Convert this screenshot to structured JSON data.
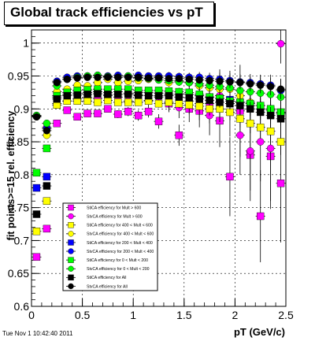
{
  "title": "Global track efficiencies vs pT",
  "footer": "Tue Nov  1 10:42:40 2011",
  "chart_data": {
    "type": "scatter",
    "title": "Global track efficiencies vs pT",
    "xlabel": "pT (GeV/c)",
    "ylabel": "fit points>=15 rel. efficiency",
    "xlim": [
      0,
      2.5
    ],
    "ylim": [
      0.6,
      1.02
    ],
    "x_ticks": [
      0,
      0.5,
      1,
      1.5,
      2,
      2.5
    ],
    "x_tick_labels": [
      "0",
      "0.5",
      "1",
      "1.5",
      "2",
      "2.5"
    ],
    "y_ticks": [
      0.6,
      0.65,
      0.7,
      0.75,
      0.8,
      0.85,
      0.9,
      0.95,
      1.0
    ],
    "y_tick_labels": [
      "0.6",
      "0.65",
      "0.7",
      "0.75",
      "0.8",
      "0.85",
      "0.9",
      "0.95",
      "1"
    ],
    "grid": true,
    "legend_position": "bottom-left",
    "x": [
      0.05,
      0.15,
      0.25,
      0.35,
      0.45,
      0.55,
      0.65,
      0.75,
      0.85,
      0.95,
      1.05,
      1.15,
      1.25,
      1.35,
      1.45,
      1.55,
      1.65,
      1.75,
      1.85,
      1.95,
      2.05,
      2.15,
      2.25,
      2.35,
      2.45
    ],
    "series": [
      {
        "name": "StiCA efficiency  for Mult > 600",
        "color": "#ff00ff",
        "marker": "square",
        "values": [
          0.675,
          0.718,
          0.878,
          0.898,
          0.888,
          0.893,
          0.893,
          0.9,
          0.892,
          0.896,
          0.89,
          0.896,
          0.881,
          0.908,
          0.86,
          0.9,
          0.897,
          0.908,
          0.882,
          0.797,
          0.897,
          0.83,
          0.737,
          0.828,
          0.787
        ],
        "errors": [
          0.004,
          0.004,
          0.004,
          0.004,
          0.004,
          0.004,
          0.005,
          0.005,
          0.006,
          0.007,
          0.008,
          0.009,
          0.011,
          0.013,
          0.016,
          0.02,
          0.025,
          0.03,
          0.04,
          0.06,
          0.07,
          0.07,
          0.07,
          0.08,
          0.09
        ]
      },
      {
        "name": "StvCA efficiency  for Mult > 600",
        "color": "#ff00ff",
        "marker": "circle",
        "values": [
          0.889,
          0.872,
          0.908,
          0.912,
          0.915,
          0.917,
          0.916,
          0.92,
          0.918,
          0.912,
          0.92,
          0.913,
          0.918,
          0.91,
          0.902,
          0.912,
          0.908,
          0.89,
          0.92,
          0.908,
          0.86,
          0.836,
          0.85,
          0.84,
          0.999
        ],
        "errors": [
          0.004,
          0.004,
          0.004,
          0.004,
          0.004,
          0.004,
          0.005,
          0.005,
          0.006,
          0.007,
          0.008,
          0.009,
          0.011,
          0.013,
          0.016,
          0.02,
          0.025,
          0.03,
          0.04,
          0.05,
          0.06,
          0.06,
          0.06,
          0.08,
          0.03
        ]
      },
      {
        "name": "StiCA efficiency  for 400 < Mult < 600",
        "color": "#ffff00",
        "marker": "square",
        "values": [
          0.714,
          0.76,
          0.906,
          0.912,
          0.912,
          0.912,
          0.91,
          0.913,
          0.91,
          0.91,
          0.91,
          0.912,
          0.908,
          0.91,
          0.908,
          0.906,
          0.904,
          0.9,
          0.9,
          0.895,
          0.885,
          0.878,
          0.872,
          0.866,
          0.85
        ],
        "errors": [
          0.003,
          0.003,
          0.003,
          0.003,
          0.003,
          0.003,
          0.003,
          0.004,
          0.004,
          0.004,
          0.005,
          0.005,
          0.006,
          0.006,
          0.007,
          0.008,
          0.009,
          0.01,
          0.011,
          0.012,
          0.013,
          0.015,
          0.016,
          0.018,
          0.02
        ]
      },
      {
        "name": "StvCA efficiency  for 400 < Mult < 600",
        "color": "#ffff00",
        "marker": "circle",
        "values": [
          0.888,
          0.86,
          0.926,
          0.93,
          0.936,
          0.935,
          0.94,
          0.945,
          0.94,
          0.942,
          0.943,
          0.945,
          0.948,
          0.94,
          0.943,
          0.94,
          0.935,
          0.932,
          0.93,
          0.93,
          0.92,
          0.91,
          0.905,
          0.9,
          0.895
        ],
        "errors": [
          0.003,
          0.003,
          0.003,
          0.003,
          0.003,
          0.003,
          0.003,
          0.004,
          0.004,
          0.004,
          0.005,
          0.005,
          0.006,
          0.006,
          0.007,
          0.008,
          0.009,
          0.01,
          0.011,
          0.012,
          0.013,
          0.015,
          0.016,
          0.018,
          0.02
        ]
      },
      {
        "name": "StiCA efficiency  for 200 < Mult < 400",
        "color": "#0000ff",
        "marker": "square",
        "values": [
          0.78,
          0.797,
          0.918,
          0.922,
          0.924,
          0.925,
          0.926,
          0.925,
          0.926,
          0.924,
          0.925,
          0.925,
          0.924,
          0.922,
          0.922,
          0.922,
          0.92,
          0.918,
          0.916,
          0.914,
          0.91,
          0.905,
          0.9,
          0.898,
          0.893
        ],
        "errors": [
          0.003,
          0.003,
          0.003,
          0.003,
          0.003,
          0.003,
          0.003,
          0.003,
          0.004,
          0.004,
          0.004,
          0.005,
          0.005,
          0.006,
          0.006,
          0.007,
          0.008,
          0.009,
          0.01,
          0.011,
          0.012,
          0.013,
          0.014,
          0.016,
          0.018
        ]
      },
      {
        "name": "StvCA efficiency  for 200 < Mult < 400",
        "color": "#0000ff",
        "marker": "circle",
        "values": [
          0.89,
          0.87,
          0.942,
          0.948,
          0.95,
          0.95,
          0.951,
          0.95,
          0.951,
          0.95,
          0.951,
          0.95,
          0.95,
          0.95,
          0.949,
          0.948,
          0.948,
          0.946,
          0.945,
          0.943,
          0.941,
          0.94,
          0.938,
          0.936,
          0.928
        ],
        "errors": [
          0.003,
          0.003,
          0.003,
          0.003,
          0.003,
          0.003,
          0.003,
          0.003,
          0.004,
          0.004,
          0.004,
          0.005,
          0.005,
          0.006,
          0.006,
          0.007,
          0.008,
          0.009,
          0.01,
          0.011,
          0.012,
          0.013,
          0.014,
          0.016,
          0.018
        ]
      },
      {
        "name": "StiCA efficiency  for 0 < Mult < 200",
        "color": "#00ff00",
        "marker": "square",
        "values": [
          0.803,
          0.84,
          0.92,
          0.925,
          0.928,
          0.929,
          0.93,
          0.93,
          0.93,
          0.93,
          0.928,
          0.928,
          0.928,
          0.927,
          0.926,
          0.925,
          0.922,
          0.918,
          0.916,
          0.912,
          0.91,
          0.908,
          0.905,
          0.9,
          0.895
        ],
        "errors": [
          0.003,
          0.003,
          0.003,
          0.003,
          0.003,
          0.003,
          0.003,
          0.003,
          0.004,
          0.004,
          0.004,
          0.005,
          0.005,
          0.006,
          0.006,
          0.007,
          0.008,
          0.009,
          0.01,
          0.011,
          0.012,
          0.013,
          0.014,
          0.016,
          0.018
        ]
      },
      {
        "name": "StvCA efficiency  for 0 < Mult < 200",
        "color": "#00ff00",
        "marker": "circle",
        "values": [
          0.89,
          0.878,
          0.935,
          0.945,
          0.948,
          0.95,
          0.951,
          0.949,
          0.948,
          0.95,
          0.947,
          0.946,
          0.944,
          0.943,
          0.941,
          0.94,
          0.938,
          0.936,
          0.934,
          0.932,
          0.928,
          0.926,
          0.924,
          0.922,
          0.918
        ],
        "errors": [
          0.003,
          0.003,
          0.003,
          0.003,
          0.003,
          0.003,
          0.003,
          0.003,
          0.004,
          0.004,
          0.004,
          0.005,
          0.005,
          0.006,
          0.006,
          0.007,
          0.008,
          0.009,
          0.01,
          0.011,
          0.012,
          0.013,
          0.014,
          0.016,
          0.018
        ]
      },
      {
        "name": "StiCA efficiency  for All",
        "color": "#000000",
        "marker": "square",
        "values": [
          0.74,
          0.783,
          0.915,
          0.92,
          0.921,
          0.922,
          0.923,
          0.922,
          0.922,
          0.922,
          0.921,
          0.92,
          0.92,
          0.92,
          0.918,
          0.917,
          0.915,
          0.913,
          0.91,
          0.908,
          0.905,
          0.9,
          0.895,
          0.89,
          0.885
        ],
        "errors": [
          0.002,
          0.002,
          0.002,
          0.002,
          0.002,
          0.002,
          0.002,
          0.002,
          0.003,
          0.003,
          0.003,
          0.003,
          0.004,
          0.004,
          0.005,
          0.005,
          0.006,
          0.007,
          0.008,
          0.009,
          0.01,
          0.011,
          0.012,
          0.013,
          0.015
        ]
      },
      {
        "name": "StvCA efficiency  for All",
        "color": "#000000",
        "marker": "circle",
        "values": [
          0.888,
          0.867,
          0.94,
          0.945,
          0.947,
          0.948,
          0.948,
          0.948,
          0.948,
          0.948,
          0.948,
          0.947,
          0.947,
          0.946,
          0.946,
          0.945,
          0.944,
          0.943,
          0.942,
          0.941,
          0.94,
          0.938,
          0.936,
          0.934,
          0.93
        ],
        "errors": [
          0.002,
          0.002,
          0.002,
          0.002,
          0.002,
          0.002,
          0.002,
          0.002,
          0.003,
          0.003,
          0.003,
          0.003,
          0.004,
          0.004,
          0.005,
          0.005,
          0.006,
          0.007,
          0.008,
          0.009,
          0.01,
          0.011,
          0.012,
          0.013,
          0.015
        ]
      }
    ]
  }
}
